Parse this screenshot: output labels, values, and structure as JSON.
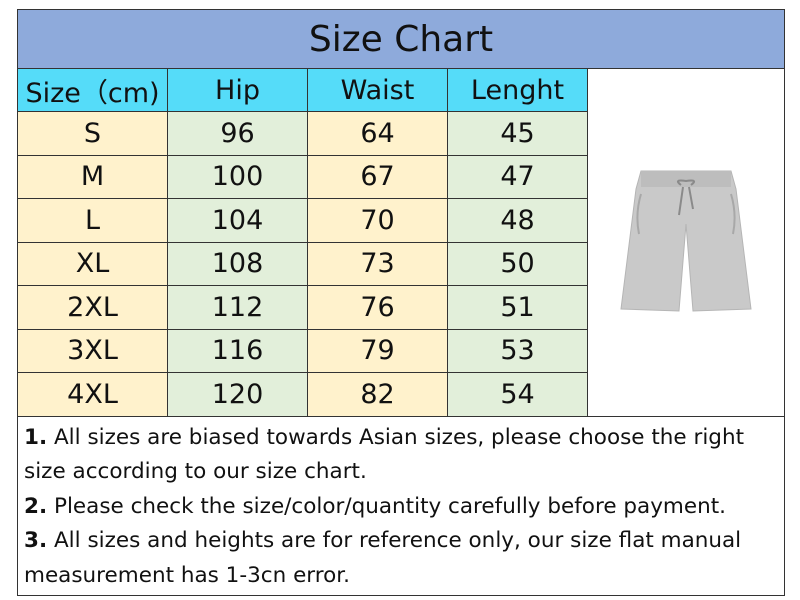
{
  "title": "Size Chart",
  "headers": [
    "Size（cm)",
    "Hip",
    "Waist",
    "Lenght"
  ],
  "rows": [
    {
      "size": "S",
      "hip": "96",
      "waist": "64",
      "length": "45"
    },
    {
      "size": "M",
      "hip": "100",
      "waist": "67",
      "length": "47"
    },
    {
      "size": "L",
      "hip": "104",
      "waist": "70",
      "length": "48"
    },
    {
      "size": "XL",
      "hip": "108",
      "waist": "73",
      "length": "50"
    },
    {
      "size": "2XL",
      "hip": "112",
      "waist": "76",
      "length": "51"
    },
    {
      "size": "3XL",
      "hip": "116",
      "waist": "79",
      "length": "53"
    },
    {
      "size": "4XL",
      "hip": "120",
      "waist": "82",
      "length": "54"
    }
  ],
  "product_image": "grey-drawstring-shorts",
  "notes": [
    {
      "num": "1.",
      "text": " All sizes are biased towards Asian sizes, please choose the right size according to our size chart."
    },
    {
      "num": "2.",
      "text": " Please check the size/color/quantity carefully before payment."
    },
    {
      "num": "3.",
      "text": " All sizes and heights are for reference only, our size flat manual measurement has 1-3cn error."
    }
  ],
  "colors": {
    "title_bg": "#8eaadb",
    "header_bg": "#55dcf9",
    "yellow_col": "#fff2cc",
    "green_col": "#e2efda"
  }
}
